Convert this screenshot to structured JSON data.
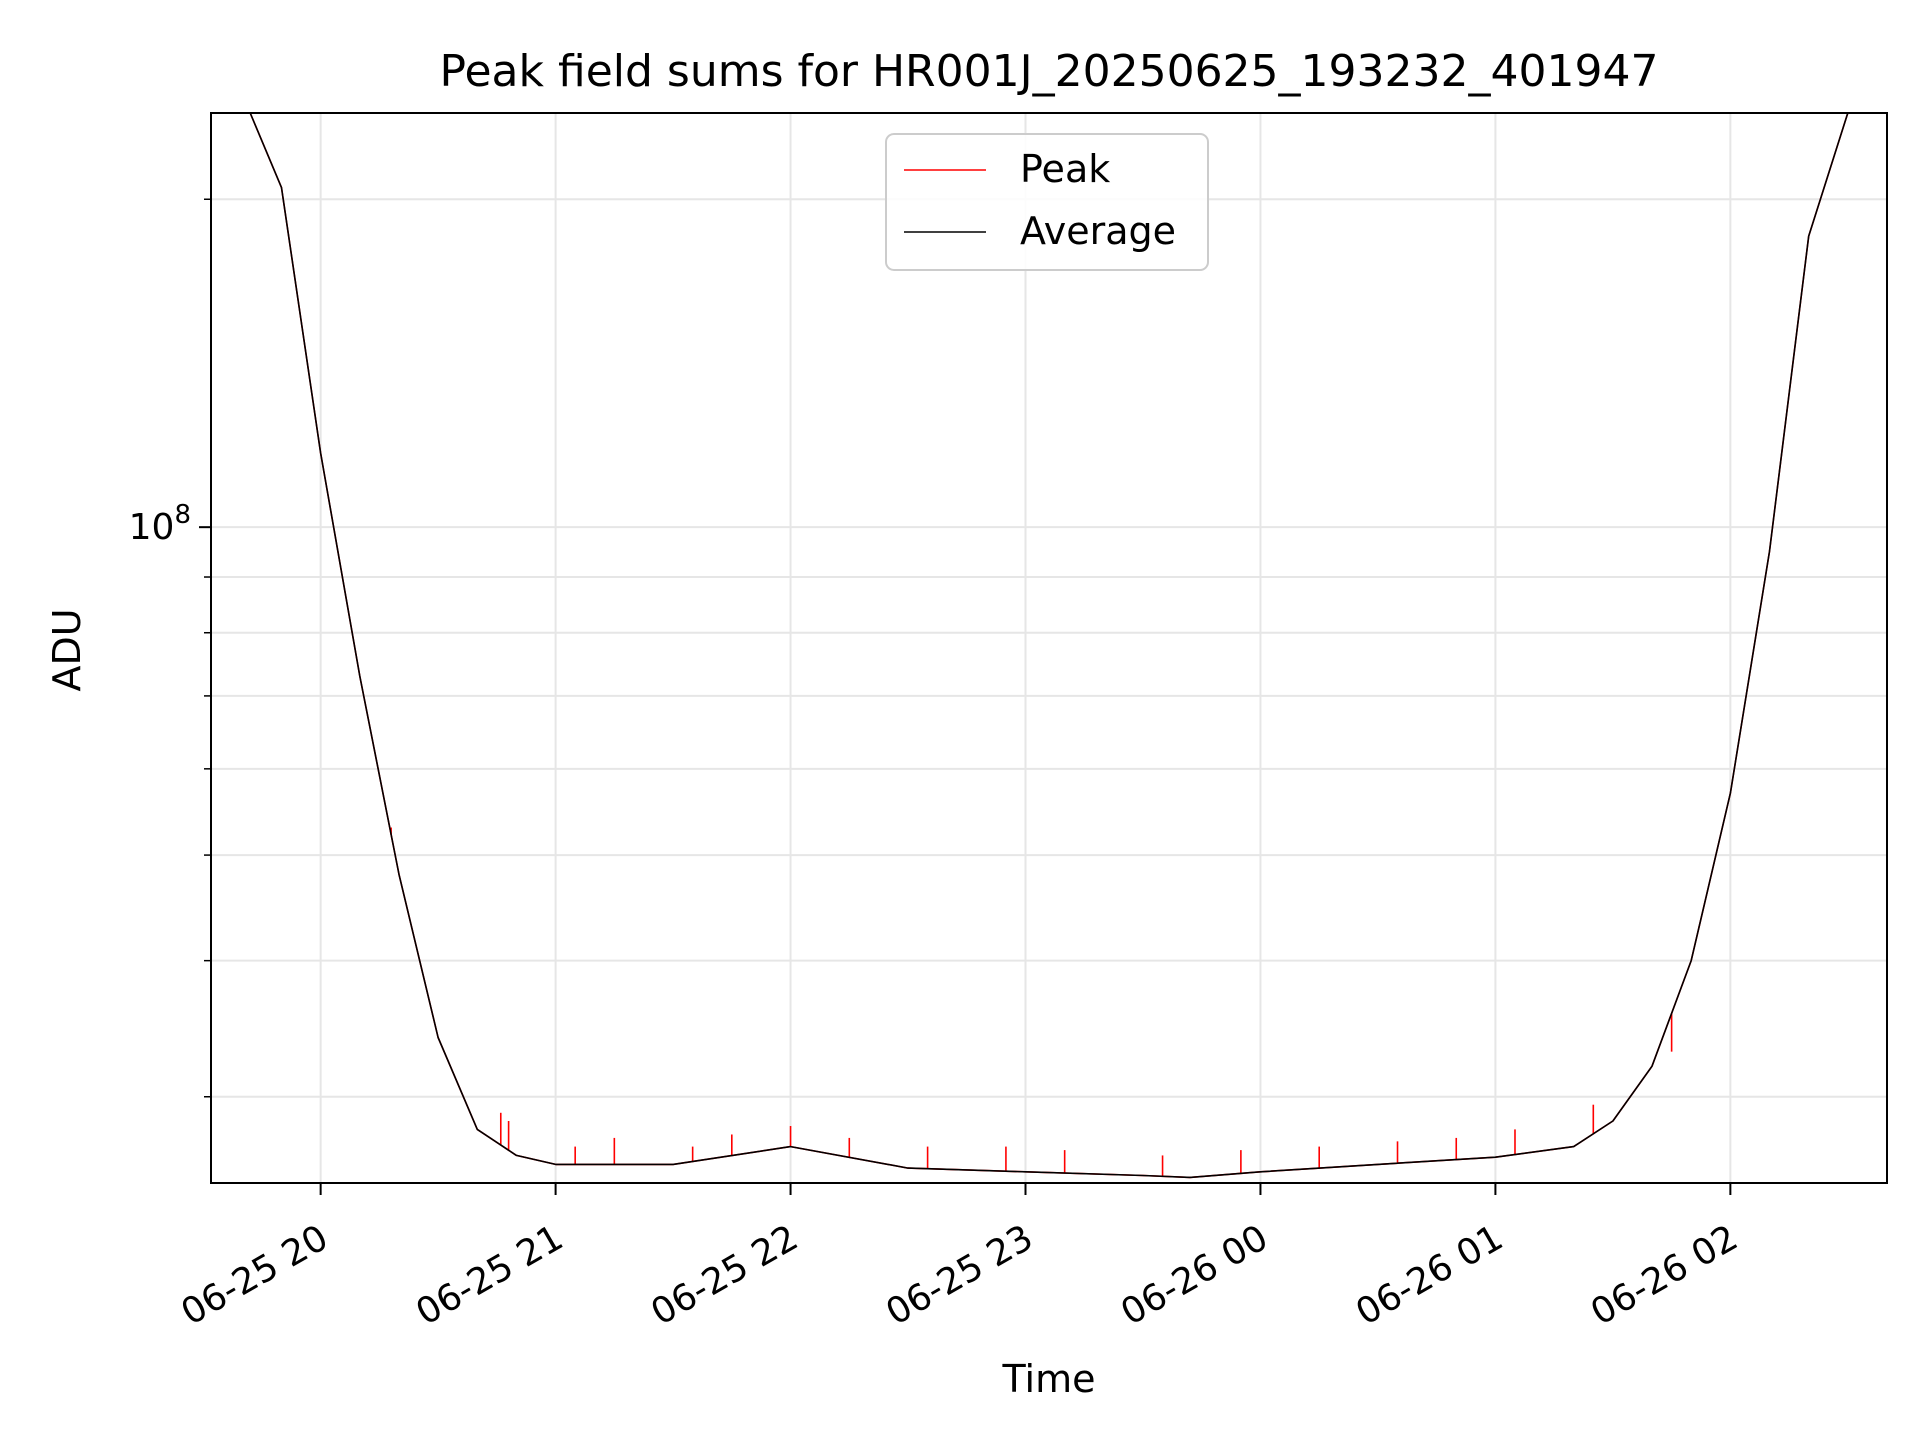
{
  "chart_data": {
    "type": "line",
    "title": "Peak field sums for HR001J_20250625_193232_401947",
    "xlabel": "Time",
    "ylabel": "ADU",
    "y_scale": "log",
    "x_tick_labels": [
      "06-25 20",
      "06-25 21",
      "06-25 22",
      "06-25 23",
      "06-26 00",
      "06-26 01",
      "06-26 02"
    ],
    "y_tick_labels": [
      {
        "base": "10",
        "exp": "8"
      }
    ],
    "legend": {
      "placement": "upper center"
    },
    "grid": true,
    "series": [
      {
        "name": "Peak",
        "color": "#ff0000",
        "x": [
          "2025-06-25 19:32",
          "2025-06-25 19:42",
          "2025-06-25 19:50",
          "2025-06-25 20:00",
          "2025-06-25 20:10",
          "2025-06-25 20:20",
          "2025-06-25 20:30",
          "2025-06-25 20:40",
          "2025-06-25 20:50",
          "2025-06-25 21:00",
          "2025-06-25 21:30",
          "2025-06-25 22:00",
          "2025-06-25 22:30",
          "2025-06-25 23:00",
          "2025-06-25 23:30",
          "2025-06-25 23:42",
          "2025-06-26 00:00",
          "2025-06-26 00:30",
          "2025-06-26 01:00",
          "2025-06-26 01:20",
          "2025-06-26 01:30",
          "2025-06-26 01:40",
          "2025-06-26 01:50",
          "2025-06-26 02:00",
          "2025-06-26 02:10",
          "2025-06-26 02:20",
          "2025-06-26 02:30"
        ],
        "values": [
          240000000,
          240000000,
          205000000,
          117000000,
          73000000,
          48000000,
          34000000,
          28000000,
          26500000,
          26000000,
          26000000,
          27000000,
          25800000,
          25600000,
          25400000,
          25300000,
          25600000,
          26000000,
          26400000,
          27000000,
          28500000,
          32000000,
          40000000,
          57000000,
          95000000,
          185000000,
          240000000
        ],
        "spikes": [
          {
            "x": "2025-06-25 20:18",
            "value": 53000000
          },
          {
            "x": "2025-06-25 20:46",
            "value": 29000000
          },
          {
            "x": "2025-06-25 20:48",
            "value": 28500000
          },
          {
            "x": "2025-06-25 21:05",
            "value": 27000000
          },
          {
            "x": "2025-06-25 21:15",
            "value": 27500000
          },
          {
            "x": "2025-06-25 21:35",
            "value": 27000000
          },
          {
            "x": "2025-06-25 21:45",
            "value": 27700000
          },
          {
            "x": "2025-06-25 22:00",
            "value": 28200000
          },
          {
            "x": "2025-06-25 22:15",
            "value": 27500000
          },
          {
            "x": "2025-06-25 22:35",
            "value": 27000000
          },
          {
            "x": "2025-06-25 22:55",
            "value": 27000000
          },
          {
            "x": "2025-06-25 23:10",
            "value": 26800000
          },
          {
            "x": "2025-06-25 23:35",
            "value": 26500000
          },
          {
            "x": "2025-06-25 23:55",
            "value": 26800000
          },
          {
            "x": "2025-06-26 00:15",
            "value": 27000000
          },
          {
            "x": "2025-06-26 00:35",
            "value": 27300000
          },
          {
            "x": "2025-06-26 00:50",
            "value": 27500000
          },
          {
            "x": "2025-06-26 01:05",
            "value": 28000000
          },
          {
            "x": "2025-06-26 01:25",
            "value": 29500000
          },
          {
            "x": "2025-06-26 01:45",
            "value": 33000000
          },
          {
            "x": "2025-06-26 01:52",
            "value": 43000000
          }
        ]
      },
      {
        "name": "Average",
        "color": "#000000",
        "x": [
          "2025-06-25 19:32",
          "2025-06-25 19:42",
          "2025-06-25 19:50",
          "2025-06-25 20:00",
          "2025-06-25 20:10",
          "2025-06-25 20:20",
          "2025-06-25 20:30",
          "2025-06-25 20:40",
          "2025-06-25 20:50",
          "2025-06-25 21:00",
          "2025-06-25 21:30",
          "2025-06-25 22:00",
          "2025-06-25 22:30",
          "2025-06-25 23:00",
          "2025-06-25 23:30",
          "2025-06-25 23:42",
          "2025-06-26 00:00",
          "2025-06-26 00:30",
          "2025-06-26 01:00",
          "2025-06-26 01:20",
          "2025-06-26 01:30",
          "2025-06-26 01:40",
          "2025-06-26 01:50",
          "2025-06-26 02:00",
          "2025-06-26 02:10",
          "2025-06-26 02:20",
          "2025-06-26 02:30"
        ],
        "values": [
          240000000,
          240000000,
          205000000,
          117000000,
          73000000,
          48000000,
          34000000,
          28000000,
          26500000,
          26000000,
          26000000,
          27000000,
          25800000,
          25600000,
          25400000,
          25300000,
          25600000,
          26000000,
          26400000,
          27000000,
          28500000,
          32000000,
          40000000,
          57000000,
          95000000,
          185000000,
          240000000
        ]
      }
    ]
  }
}
